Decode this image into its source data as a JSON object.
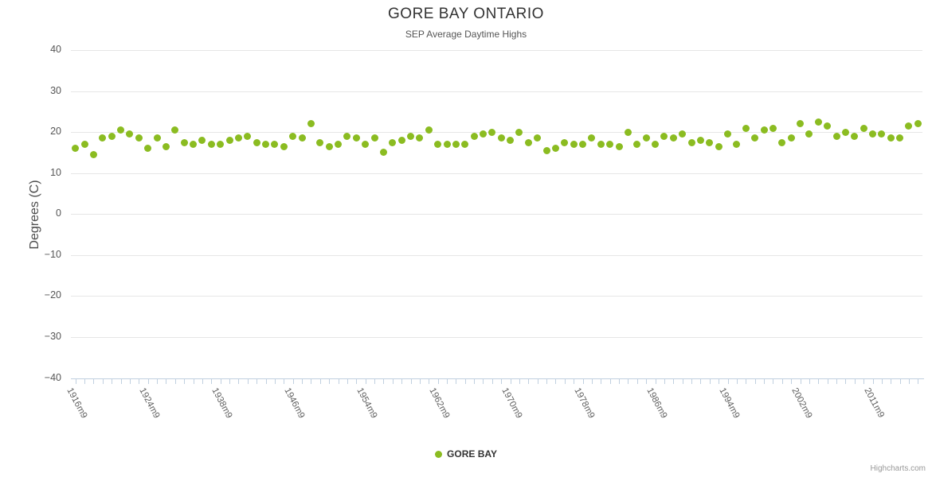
{
  "header": {
    "title": "GORE BAY ONTARIO",
    "subtitle": "SEP Average Daytime Highs"
  },
  "legend": {
    "series_label": "GORE BAY",
    "marker_color": "#8bbc21"
  },
  "credits": {
    "label": "Highcharts.com"
  },
  "colors": {
    "series_green": "#8bbc21",
    "gridline": "#e6e6e6",
    "axis_line": "#c0d0e0",
    "title_text": "#333333",
    "subtitle_text": "#555555",
    "tick_text": "#606060",
    "credits_text": "#999999"
  },
  "chart_data": {
    "type": "scatter",
    "title": "GORE BAY ONTARIO",
    "subtitle": "SEP Average Daytime Highs",
    "xlabel": "",
    "ylabel": "Degrees (C)",
    "ylim": [
      -40,
      40
    ],
    "y_ticks": [
      40,
      30,
      20,
      10,
      0,
      -10,
      -20,
      -30,
      -40
    ],
    "grid": "horizontal-only",
    "legend_position": "bottom-center",
    "x_tick_labels": [
      {
        "index": 0,
        "label": "1916m9"
      },
      {
        "index": 8,
        "label": "1924m9"
      },
      {
        "index": 16,
        "label": "1938m9"
      },
      {
        "index": 24,
        "label": "1946m9"
      },
      {
        "index": 32,
        "label": "1954m9"
      },
      {
        "index": 40,
        "label": "1962m9"
      },
      {
        "index": 48,
        "label": "1970m9"
      },
      {
        "index": 56,
        "label": "1978m9"
      },
      {
        "index": 64,
        "label": "1986m9"
      },
      {
        "index": 72,
        "label": "1994m9"
      },
      {
        "index": 80,
        "label": "2002m9"
      },
      {
        "index": 88,
        "label": "2011m9"
      }
    ],
    "series": [
      {
        "name": "GORE BAY",
        "color": "#8bbc21",
        "values": [
          16,
          17,
          14.5,
          18.5,
          19,
          20.5,
          19.5,
          18.5,
          16,
          18.5,
          16.5,
          20.5,
          17.5,
          17,
          18,
          17,
          17,
          18,
          18.5,
          19,
          17.5,
          17,
          17,
          16.5,
          19,
          18.5,
          22,
          17.5,
          16.5,
          17,
          19,
          18.5,
          17,
          18.5,
          15,
          17.5,
          18,
          19,
          18.5,
          20.5,
          17,
          17,
          17,
          17,
          19,
          19.5,
          20,
          18.5,
          18,
          20,
          17.5,
          18.5,
          15.5,
          16,
          17.5,
          17,
          17,
          18.5,
          17,
          17,
          16.5,
          20,
          17,
          18.5,
          17,
          19,
          18.5,
          19.5,
          17.5,
          18,
          17.5,
          16.5,
          19.5,
          17,
          21,
          18.5,
          20.5,
          21,
          17.5,
          18.5,
          22,
          19.5,
          22.5,
          21.5,
          19,
          20,
          19,
          21,
          19.5,
          19.5,
          18.5,
          18.5,
          21.5,
          22
        ]
      }
    ]
  }
}
